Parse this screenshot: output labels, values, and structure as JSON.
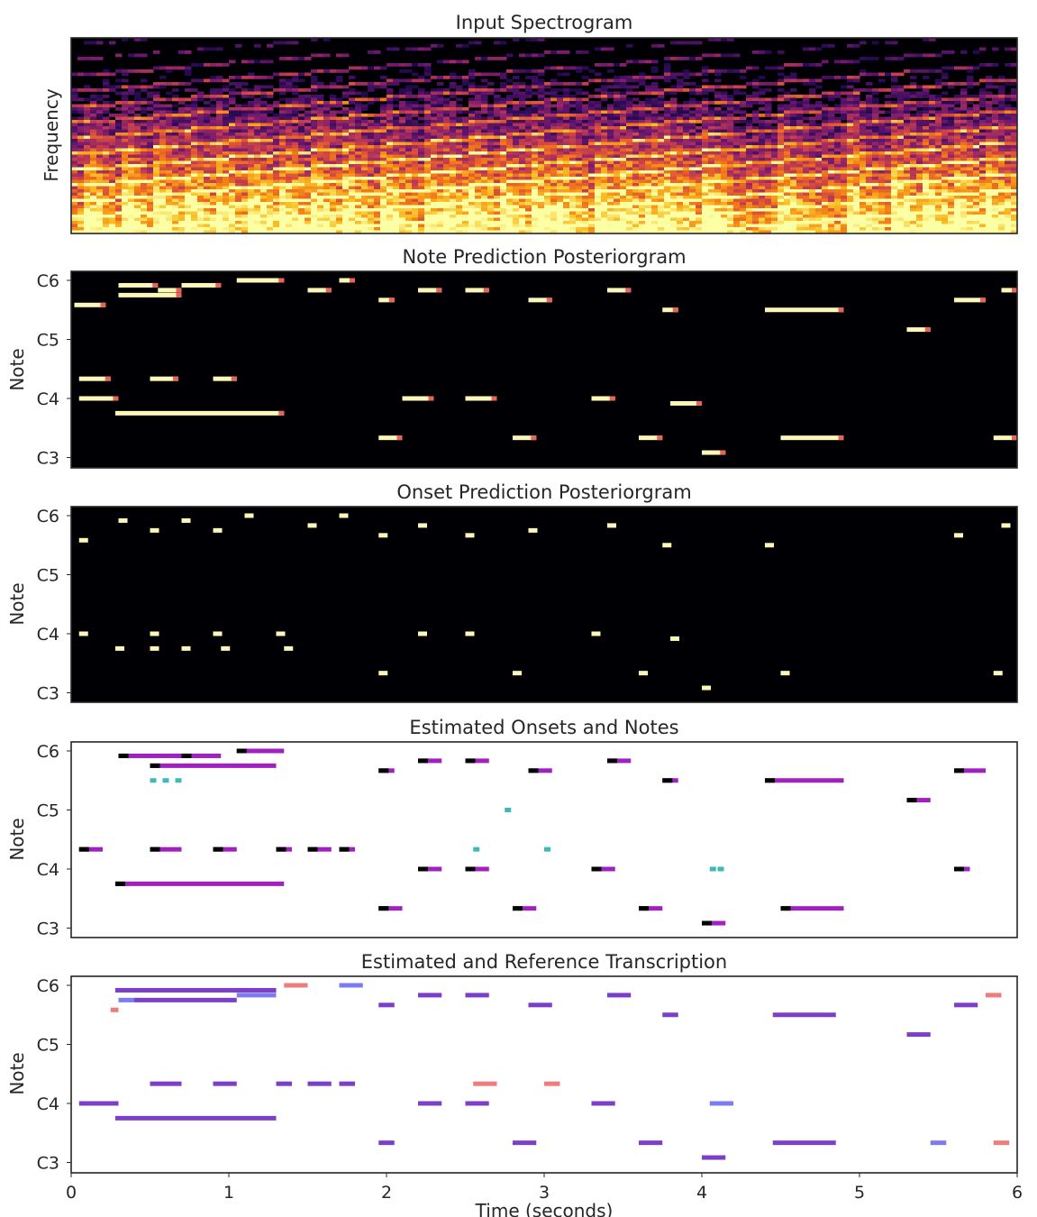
{
  "chart_data": [
    {
      "type": "heatmap",
      "title": "Input Spectrogram",
      "ylabel": "Frequency",
      "xlim": [
        0,
        6
      ]
    },
    {
      "type": "heatmap",
      "title": "Note Prediction Posteriorgram",
      "ylabel": "Note",
      "xlim": [
        0,
        6
      ],
      "yticks": [
        {
          "label": "C6",
          "midi": 84
        },
        {
          "label": "C5",
          "midi": 72
        },
        {
          "label": "C4",
          "midi": 60
        },
        {
          "label": "C3",
          "midi": 48
        }
      ],
      "notes": [
        [
          0.02,
          0.22,
          79
        ],
        [
          0.3,
          0.55,
          83
        ],
        [
          0.55,
          0.7,
          82
        ],
        [
          0.7,
          0.95,
          83
        ],
        [
          1.05,
          1.35,
          84
        ],
        [
          0.28,
          1.35,
          57
        ],
        [
          0.05,
          0.3,
          60
        ],
        [
          0.05,
          0.25,
          64
        ],
        [
          0.5,
          0.68,
          64
        ],
        [
          0.9,
          1.05,
          64
        ],
        [
          0.3,
          0.7,
          81
        ],
        [
          1.5,
          1.65,
          82
        ],
        [
          1.7,
          1.8,
          84
        ],
        [
          1.95,
          2.05,
          80
        ],
        [
          2.2,
          2.35,
          82
        ],
        [
          2.5,
          2.65,
          82
        ],
        [
          2.9,
          3.05,
          80
        ],
        [
          3.4,
          3.55,
          82
        ],
        [
          3.75,
          3.85,
          78
        ],
        [
          4.4,
          4.9,
          78
        ],
        [
          5.6,
          5.8,
          80
        ],
        [
          5.9,
          6.0,
          82
        ],
        [
          1.95,
          2.1,
          52
        ],
        [
          2.8,
          2.95,
          52
        ],
        [
          3.6,
          3.75,
          52
        ],
        [
          4.5,
          4.9,
          52
        ],
        [
          5.85,
          6.0,
          52
        ],
        [
          4.0,
          4.15,
          49
        ],
        [
          2.1,
          2.3,
          60
        ],
        [
          2.5,
          2.7,
          60
        ],
        [
          3.3,
          3.45,
          60
        ],
        [
          3.8,
          4.0,
          59
        ],
        [
          5.3,
          5.45,
          74
        ]
      ]
    },
    {
      "type": "heatmap",
      "title": "Onset Prediction Posteriorgram",
      "ylabel": "Note",
      "xlim": [
        0,
        6
      ],
      "yticks": [
        {
          "label": "C6",
          "midi": 84
        },
        {
          "label": "C5",
          "midi": 72
        },
        {
          "label": "C4",
          "midi": 60
        },
        {
          "label": "C3",
          "midi": 48
        }
      ],
      "onsets": [
        [
          0.3,
          83
        ],
        [
          0.5,
          81
        ],
        [
          0.7,
          83
        ],
        [
          0.9,
          81
        ],
        [
          1.1,
          84
        ],
        [
          1.5,
          82
        ],
        [
          1.7,
          84
        ],
        [
          1.95,
          80
        ],
        [
          2.2,
          82
        ],
        [
          2.5,
          80
        ],
        [
          2.9,
          81
        ],
        [
          3.4,
          82
        ],
        [
          3.75,
          78
        ],
        [
          4.4,
          78
        ],
        [
          5.6,
          80
        ],
        [
          5.9,
          82
        ],
        [
          0.05,
          79
        ],
        [
          0.28,
          57
        ],
        [
          0.5,
          57
        ],
        [
          0.7,
          57
        ],
        [
          0.95,
          57
        ],
        [
          1.35,
          57
        ],
        [
          0.05,
          60
        ],
        [
          0.5,
          60
        ],
        [
          0.9,
          60
        ],
        [
          1.3,
          60
        ],
        [
          2.2,
          60
        ],
        [
          2.5,
          60
        ],
        [
          3.3,
          60
        ],
        [
          3.8,
          59
        ],
        [
          1.95,
          52
        ],
        [
          2.8,
          52
        ],
        [
          3.6,
          52
        ],
        [
          4.5,
          52
        ],
        [
          5.85,
          52
        ],
        [
          4.0,
          49
        ]
      ]
    },
    {
      "type": "heatmap",
      "title": "Estimated Onsets and Notes",
      "ylabel": "Note",
      "xlim": [
        0,
        6
      ],
      "yticks": [
        {
          "label": "C6",
          "midi": 84
        },
        {
          "label": "C5",
          "midi": 72
        },
        {
          "label": "C4",
          "midi": 60
        },
        {
          "label": "C3",
          "midi": 48
        }
      ],
      "estimated_notes": [
        [
          0.3,
          0.7,
          83
        ],
        [
          0.7,
          0.95,
          83
        ],
        [
          1.05,
          1.35,
          84
        ],
        [
          0.5,
          1.3,
          81
        ],
        [
          0.28,
          1.35,
          57
        ],
        [
          0.05,
          0.2,
          64
        ],
        [
          0.5,
          0.7,
          64
        ],
        [
          0.9,
          1.05,
          64
        ],
        [
          1.3,
          1.4,
          64
        ],
        [
          1.5,
          1.65,
          64
        ],
        [
          1.7,
          1.8,
          64
        ],
        [
          1.95,
          2.05,
          80
        ],
        [
          2.2,
          2.35,
          82
        ],
        [
          2.5,
          2.65,
          82
        ],
        [
          2.9,
          3.05,
          80
        ],
        [
          3.4,
          3.55,
          82
        ],
        [
          3.75,
          3.85,
          78
        ],
        [
          4.4,
          4.9,
          78
        ],
        [
          5.6,
          5.8,
          80
        ],
        [
          1.95,
          2.1,
          52
        ],
        [
          2.8,
          2.95,
          52
        ],
        [
          3.6,
          3.75,
          52
        ],
        [
          4.5,
          4.9,
          52
        ],
        [
          4.0,
          4.15,
          49
        ],
        [
          2.2,
          2.35,
          60
        ],
        [
          2.5,
          2.65,
          60
        ],
        [
          3.3,
          3.45,
          60
        ],
        [
          5.6,
          5.7,
          60
        ],
        [
          5.3,
          5.45,
          74
        ]
      ],
      "false_onsets": [
        [
          0.5,
          78
        ],
        [
          0.58,
          78
        ],
        [
          0.66,
          78
        ],
        [
          2.75,
          72
        ],
        [
          2.55,
          64
        ],
        [
          3.0,
          64
        ],
        [
          4.05,
          60
        ],
        [
          4.1,
          60
        ]
      ]
    },
    {
      "type": "heatmap",
      "title": "Estimated and Reference Transcription",
      "ylabel": "Note",
      "xlabel": "Time (seconds)",
      "xlim": [
        0,
        6
      ],
      "xticks": [
        0,
        1,
        2,
        3,
        4,
        5,
        6
      ],
      "yticks": [
        {
          "label": "C6",
          "midi": 84
        },
        {
          "label": "C5",
          "midi": 72
        },
        {
          "label": "C4",
          "midi": 60
        },
        {
          "label": "C3",
          "midi": 48
        }
      ],
      "overlap_notes": [
        [
          0.28,
          1.3,
          83
        ],
        [
          0.4,
          1.05,
          81
        ],
        [
          0.28,
          1.3,
          57
        ],
        [
          0.05,
          0.3,
          60
        ],
        [
          0.5,
          0.7,
          64
        ],
        [
          0.9,
          1.05,
          64
        ],
        [
          1.3,
          1.4,
          64
        ],
        [
          1.5,
          1.65,
          64
        ],
        [
          1.7,
          1.8,
          64
        ],
        [
          1.95,
          2.05,
          80
        ],
        [
          2.2,
          2.35,
          82
        ],
        [
          2.5,
          2.65,
          82
        ],
        [
          2.9,
          3.05,
          80
        ],
        [
          3.4,
          3.55,
          82
        ],
        [
          3.75,
          3.85,
          78
        ],
        [
          4.45,
          4.85,
          78
        ],
        [
          5.6,
          5.75,
          80
        ],
        [
          1.95,
          2.05,
          52
        ],
        [
          2.8,
          2.95,
          52
        ],
        [
          3.6,
          3.75,
          52
        ],
        [
          4.45,
          4.85,
          52
        ],
        [
          4.0,
          4.15,
          49
        ],
        [
          2.2,
          2.35,
          60
        ],
        [
          2.5,
          2.65,
          60
        ],
        [
          3.3,
          3.45,
          60
        ],
        [
          5.3,
          5.45,
          74
        ]
      ],
      "reference_only_notes": [
        [
          1.35,
          1.5,
          84
        ],
        [
          0.25,
          0.3,
          79
        ],
        [
          2.55,
          2.7,
          64
        ],
        [
          3.0,
          3.1,
          64
        ],
        [
          5.8,
          5.9,
          82
        ],
        [
          5.85,
          5.95,
          52
        ]
      ],
      "estimate_only_notes": [
        [
          0.3,
          0.4,
          81
        ],
        [
          1.05,
          1.3,
          82
        ],
        [
          1.7,
          1.85,
          84
        ],
        [
          4.05,
          4.2,
          60
        ],
        [
          5.45,
          5.55,
          52
        ]
      ]
    }
  ]
}
